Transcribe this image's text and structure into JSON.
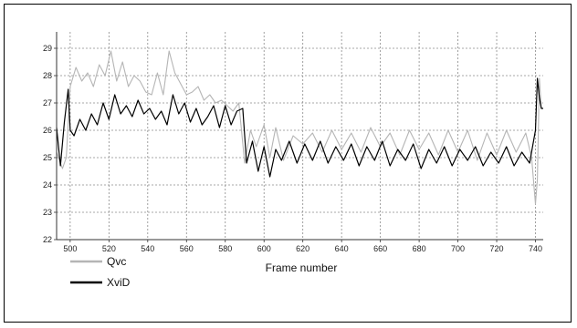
{
  "chart_data": {
    "type": "line",
    "title": "",
    "xlabel": "Frame number",
    "ylabel": "",
    "xlim": [
      493,
      744
    ],
    "ylim": [
      22,
      29.6
    ],
    "grid": true,
    "legend_placement": "bottom-left",
    "x_ticks": [
      500,
      520,
      540,
      560,
      580,
      600,
      620,
      640,
      660,
      680,
      700,
      720,
      740
    ],
    "y_ticks": [
      22,
      23,
      24,
      25,
      26,
      27,
      28,
      29
    ],
    "series": [
      {
        "name": "Qvc",
        "color": "#b5b5b5",
        "x": [
          493,
          496,
          498,
          500,
          503,
          506,
          509,
          512,
          515,
          518,
          521,
          524,
          527,
          530,
          533,
          536,
          539,
          542,
          545,
          548,
          551,
          554,
          557,
          560,
          563,
          566,
          569,
          572,
          575,
          578,
          581,
          584,
          587,
          590,
          593,
          596,
          600,
          603,
          606,
          610,
          615,
          620,
          625,
          630,
          635,
          640,
          645,
          650,
          655,
          660,
          665,
          670,
          675,
          680,
          685,
          690,
          695,
          700,
          705,
          710,
          715,
          720,
          725,
          730,
          735,
          738,
          740,
          741,
          742,
          743,
          744
        ],
        "values": [
          25.2,
          24.6,
          25.0,
          27.6,
          28.3,
          27.8,
          28.1,
          27.6,
          28.4,
          28.0,
          28.9,
          27.8,
          28.5,
          27.6,
          28.0,
          27.8,
          27.4,
          27.3,
          28.1,
          27.3,
          28.9,
          28.1,
          27.7,
          27.3,
          27.4,
          27.6,
          27.1,
          27.3,
          27.0,
          27.1,
          26.9,
          26.7,
          27.0,
          24.8,
          26.0,
          25.4,
          26.2,
          25.0,
          26.1,
          24.9,
          25.8,
          25.5,
          25.9,
          25.2,
          26.0,
          25.3,
          25.9,
          25.2,
          26.1,
          25.4,
          25.9,
          25.1,
          26.0,
          25.3,
          25.9,
          25.1,
          26.0,
          25.2,
          26.0,
          24.9,
          25.9,
          25.1,
          26.0,
          25.2,
          25.9,
          25.0,
          23.3,
          24.2,
          27.9,
          26.8,
          26.8
        ]
      },
      {
        "name": "XviD",
        "color": "#000000",
        "x": [
          493,
          495,
          497,
          499,
          500,
          502,
          505,
          508,
          511,
          514,
          517,
          520,
          523,
          526,
          529,
          532,
          535,
          538,
          541,
          544,
          547,
          550,
          553,
          556,
          559,
          562,
          565,
          568,
          571,
          574,
          577,
          580,
          583,
          586,
          589,
          591,
          594,
          597,
          600,
          603,
          606,
          609,
          613,
          617,
          621,
          625,
          629,
          633,
          637,
          641,
          645,
          649,
          653,
          657,
          661,
          665,
          669,
          673,
          677,
          681,
          685,
          689,
          693,
          697,
          701,
          705,
          709,
          713,
          717,
          721,
          725,
          729,
          733,
          737,
          740,
          741,
          742,
          743,
          744
        ],
        "values": [
          26.1,
          24.7,
          26.3,
          27.5,
          26.0,
          25.8,
          26.4,
          26.0,
          26.6,
          26.2,
          27.0,
          26.4,
          27.3,
          26.6,
          26.9,
          26.5,
          27.1,
          26.6,
          26.8,
          26.4,
          26.7,
          26.2,
          27.3,
          26.6,
          27.0,
          26.3,
          26.8,
          26.2,
          26.5,
          26.9,
          26.1,
          26.9,
          26.2,
          26.7,
          26.8,
          24.8,
          25.6,
          24.5,
          25.4,
          24.3,
          25.3,
          24.9,
          25.6,
          24.8,
          25.5,
          24.9,
          25.6,
          24.8,
          25.4,
          24.9,
          25.5,
          24.7,
          25.4,
          24.9,
          25.6,
          24.7,
          25.3,
          24.9,
          25.5,
          24.6,
          25.3,
          24.8,
          25.4,
          24.7,
          25.3,
          24.9,
          25.4,
          24.7,
          25.2,
          24.8,
          25.4,
          24.7,
          25.2,
          24.8,
          26.0,
          27.9,
          27.2,
          26.8,
          26.8
        ]
      }
    ]
  },
  "legend": {
    "items": [
      {
        "name": "Qvc",
        "color": "#b5b5b5"
      },
      {
        "name": "XviD",
        "color": "#000000"
      }
    ]
  }
}
